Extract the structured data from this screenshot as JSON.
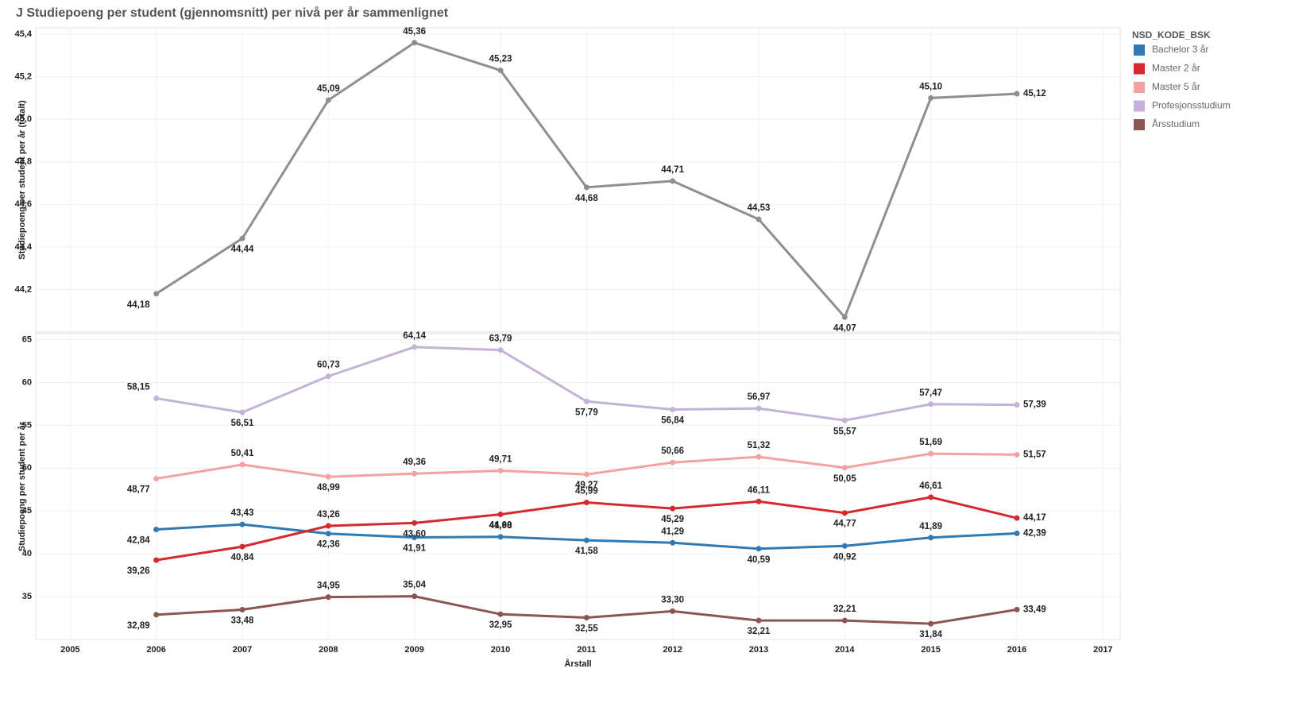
{
  "chart_data": [
    {
      "type": "line",
      "title": "J Studiepoeng per student (gjennomsnitt) per nivå per år sammenlignet",
      "ylabel": "Studiepoeng per student per år (totalt)",
      "x": [
        2006,
        2007,
        2008,
        2009,
        2010,
        2011,
        2012,
        2013,
        2014,
        2015,
        2016
      ],
      "xlim": [
        2004.6,
        2017.2
      ],
      "ylim": [
        44.0,
        45.43
      ],
      "yticks": [
        {
          "value": 44.2,
          "label": "44,2"
        },
        {
          "value": 44.4,
          "label": "44,4"
        },
        {
          "value": 44.6,
          "label": "44,6"
        },
        {
          "value": 44.8,
          "label": "44,8"
        },
        {
          "value": 45.0,
          "label": "45,0"
        },
        {
          "value": 45.2,
          "label": "45,2"
        },
        {
          "value": 45.4,
          "label": "45,4"
        }
      ],
      "grid": true,
      "series": [
        {
          "color": "#8f8f8f",
          "values": [
            44.18,
            44.44,
            45.09,
            45.36,
            45.23,
            44.68,
            44.71,
            44.53,
            44.07,
            45.1,
            45.12
          ],
          "value_labels": [
            "44,18",
            "44,44",
            "45,09",
            "45,36",
            "45,23",
            "44,68",
            "44,71",
            "44,53",
            "44,07",
            "45,10",
            "45,12"
          ]
        }
      ]
    },
    {
      "type": "line",
      "ylabel": "Studiepoeng per student per år",
      "xlabel": "Årstall",
      "x": [
        2006,
        2007,
        2008,
        2009,
        2010,
        2011,
        2012,
        2013,
        2014,
        2015,
        2016
      ],
      "xlim": [
        2004.6,
        2017.2
      ],
      "xticks": [
        2005,
        2006,
        2007,
        2008,
        2009,
        2010,
        2011,
        2012,
        2013,
        2014,
        2015,
        2016,
        2017
      ],
      "ylim": [
        30,
        65.7
      ],
      "yticks": [
        35,
        40,
        45,
        50,
        55,
        60,
        65
      ],
      "grid": true,
      "legend": "right",
      "legend_title": "NSD_KODE_BSK",
      "series": [
        {
          "name": "Bachelor 3 år",
          "color": "#2f79b5",
          "values": [
            42.84,
            43.43,
            42.36,
            41.91,
            41.98,
            41.58,
            41.29,
            40.59,
            40.92,
            41.89,
            42.39
          ],
          "value_labels": [
            "42,84",
            "43,43",
            "42,36",
            "41,91",
            "41,98",
            "41,58",
            "41,29",
            "40,59",
            "40,92",
            "41,89",
            "42,39"
          ]
        },
        {
          "name": "Master 2 år",
          "color": "#d42a2f",
          "values": [
            39.26,
            40.84,
            43.26,
            43.6,
            44.6,
            45.99,
            45.29,
            46.11,
            44.77,
            46.61,
            44.17
          ],
          "value_labels": [
            "39,26",
            "40,84",
            "43,26",
            "43,60",
            "44,60",
            "45,99",
            "45,29",
            "46,11",
            "44,77",
            "46,61",
            "44,17"
          ]
        },
        {
          "name": "Master 5 år",
          "color": "#f4a1a1",
          "values": [
            48.77,
            50.41,
            48.99,
            49.36,
            49.71,
            49.27,
            50.66,
            51.32,
            50.05,
            51.69,
            51.57
          ],
          "value_labels": [
            "48,77",
            "50,41",
            "48,99",
            "49,36",
            "49,71",
            "49,27",
            "50,66",
            "51,32",
            "50,05",
            "51,69",
            "51,57"
          ]
        },
        {
          "name": "Profesjonsstudium",
          "color": "#c6b2d8",
          "values": [
            58.15,
            56.51,
            60.73,
            64.14,
            63.79,
            57.79,
            56.84,
            56.97,
            55.57,
            57.47,
            57.39
          ],
          "value_labels": [
            "58,15",
            "56,51",
            "60,73",
            "64,14",
            "63,79",
            "57,79",
            "56,84",
            "56,97",
            "55,57",
            "57,47",
            "57,39"
          ]
        },
        {
          "name": "Årsstudium",
          "color": "#8b5650",
          "values": [
            32.89,
            33.48,
            34.95,
            35.04,
            32.95,
            32.55,
            33.3,
            32.21,
            32.21,
            31.84,
            33.49
          ],
          "value_labels": [
            "32,89",
            "33,48",
            "34,95",
            "35,04",
            "32,95",
            "32,55",
            "33,30",
            "32,21",
            "32,21",
            "31,84",
            "33,49"
          ]
        }
      ]
    }
  ]
}
